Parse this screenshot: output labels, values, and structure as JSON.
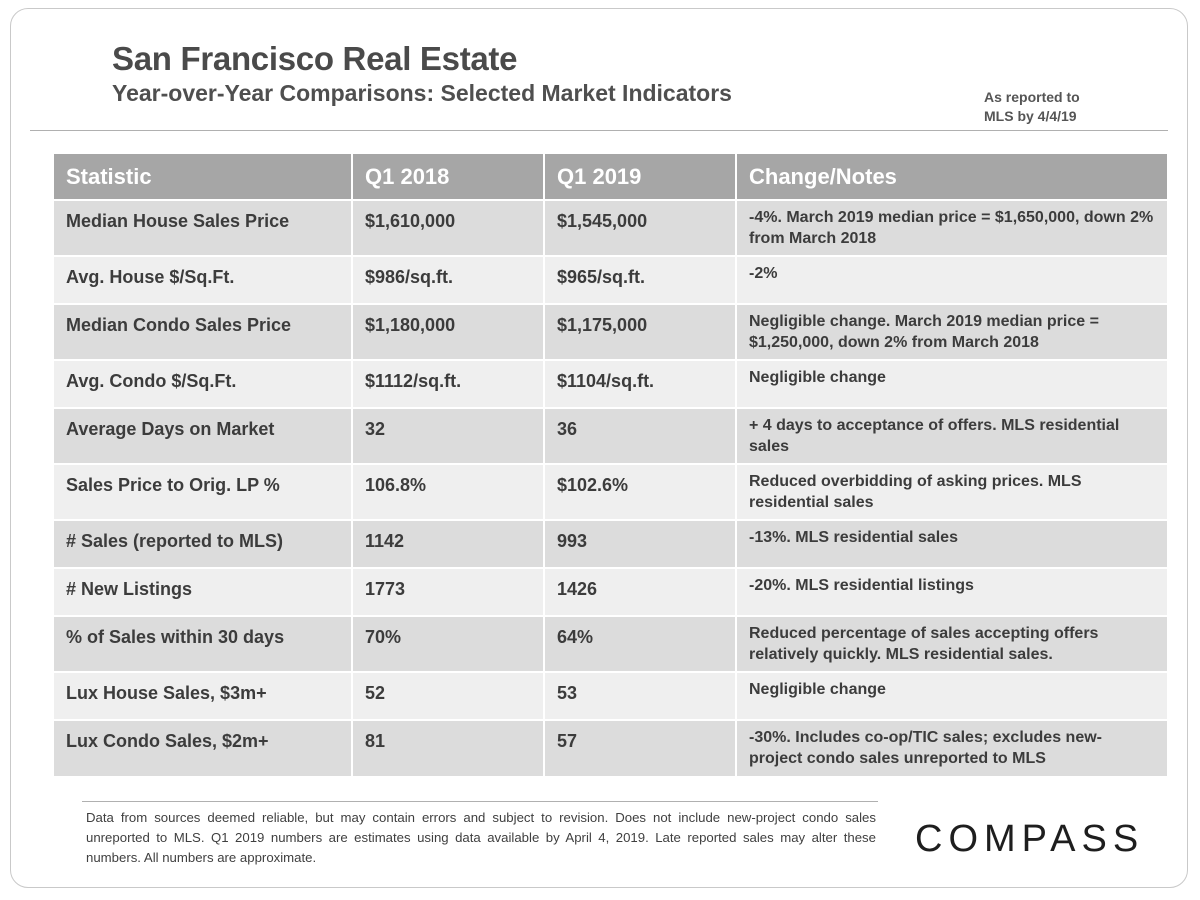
{
  "header": {
    "title": "San Francisco Real Estate",
    "subtitle": "Year-over-Year Comparisons: Selected Market Indicators",
    "note_line1": "As reported to",
    "note_line2": "MLS by 4/4/19"
  },
  "table": {
    "columns": [
      "Statistic",
      "Q1 2018",
      "Q1 2019",
      "Change/Notes"
    ],
    "rows": [
      {
        "stat": "Median House Sales Price",
        "q1_2018": "$1,610,000",
        "q1_2019": "$1,545,000",
        "notes": "-4%. March 2019 median price = $1,650,000, down 2% from March 2018"
      },
      {
        "stat": "Avg. House $/Sq.Ft.",
        "q1_2018": "$986/sq.ft.",
        "q1_2019": "$965/sq.ft.",
        "notes": "-2%"
      },
      {
        "stat": "Median Condo Sales Price",
        "q1_2018": "$1,180,000",
        "q1_2019": "$1,175,000",
        "notes": "Negligible change. March 2019 median price = $1,250,000, down 2% from March 2018"
      },
      {
        "stat": "Avg. Condo $/Sq.Ft.",
        "q1_2018": "$1112/sq.ft.",
        "q1_2019": "$1104/sq.ft.",
        "notes": "Negligible change"
      },
      {
        "stat": "Average Days on Market",
        "q1_2018": "32",
        "q1_2019": "36",
        "notes": "+ 4 days to acceptance of offers. MLS residential sales"
      },
      {
        "stat": "Sales Price to Orig. LP %",
        "q1_2018": "106.8%",
        "q1_2019": "$102.6%",
        "notes": "Reduced overbidding of asking prices. MLS residential sales"
      },
      {
        "stat": "# Sales (reported to MLS)",
        "q1_2018": "1142",
        "q1_2019": "993",
        "notes": "-13%. MLS residential sales"
      },
      {
        "stat": "# New Listings",
        "q1_2018": "1773",
        "q1_2019": "1426",
        "notes": "-20%. MLS residential listings"
      },
      {
        "stat": "% of Sales within 30 days",
        "q1_2018": "70%",
        "q1_2019": "64%",
        "notes": "Reduced percentage of sales accepting offers relatively quickly. MLS residential sales."
      },
      {
        "stat": "Lux House Sales, $3m+",
        "q1_2018": "52",
        "q1_2019": "53",
        "notes": "Negligible change"
      },
      {
        "stat": "Lux Condo Sales, $2m+",
        "q1_2018": "81",
        "q1_2019": "57",
        "notes": "-30%. Includes co-op/TIC sales; excludes new-project condo sales unreported to MLS"
      }
    ]
  },
  "footer": {
    "disclaimer": "Data from sources deemed reliable, but may contain errors and subject to revision. Does not include new-project condo sales unreported to MLS. Q1 2019 numbers are estimates using data available by April 4, 2019. Late reported sales may alter these numbers. All numbers are approximate.",
    "logo": "COMPASS"
  }
}
